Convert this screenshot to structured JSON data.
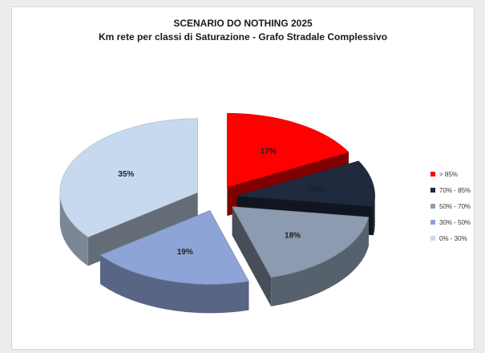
{
  "chart_data": {
    "type": "pie",
    "style": "3d-exploded",
    "title_line1": "SCENARIO DO NOTHING 2025",
    "title_line2": "Km rete per classi di Saturazione - Grafo Stradale Complessivo",
    "legend_position": "right",
    "slices": [
      {
        "name": "> 85%",
        "value": 17,
        "label": "17%",
        "color": "#ff0000"
      },
      {
        "name": "70% - 85%",
        "value": 10,
        "label": "10%",
        "color": "#1f2a3f"
      },
      {
        "name": "50% - 70%",
        "value": 18,
        "label": "18%",
        "color": "#8d9bb0"
      },
      {
        "name": "30% - 50%",
        "value": 19,
        "label": "19%",
        "color": "#8ea3d6"
      },
      {
        "name": "0% - 30%",
        "value": 35,
        "label": "35%",
        "color": "#c7d9ee"
      }
    ]
  }
}
